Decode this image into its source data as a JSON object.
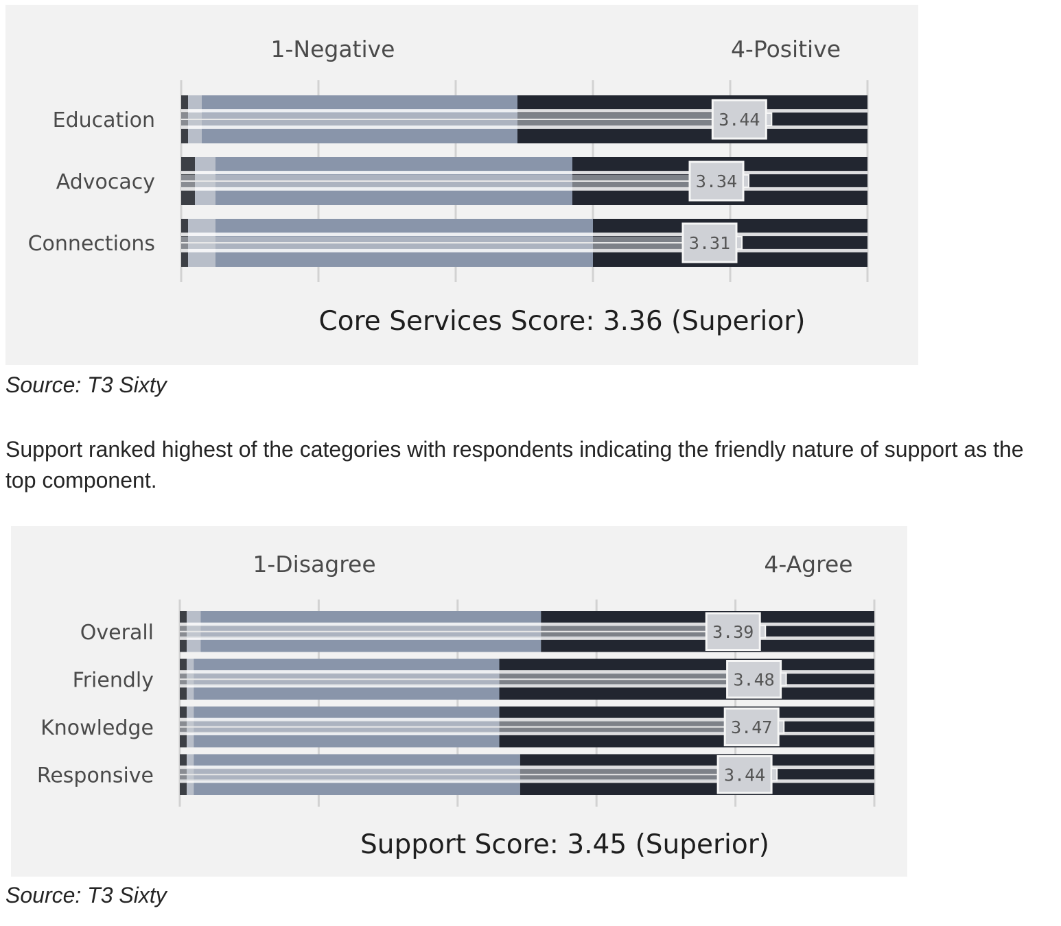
{
  "chart_data": [
    {
      "type": "bar",
      "orientation": "horizontal",
      "stacked": true,
      "scale_low_label": "1-Negative",
      "scale_high_label": "4-Positive",
      "categories": [
        "Education",
        "Advocacy",
        "Connections"
      ],
      "series": [
        {
          "name": "",
          "values": [
            1,
            2,
            1
          ]
        },
        {
          "name": "",
          "values": [
            2,
            3,
            4
          ]
        },
        {
          "name": "",
          "values": [
            46,
            52,
            55
          ]
        },
        {
          "name": "",
          "values": [
            51,
            43,
            40
          ]
        }
      ],
      "means": [
        3.44,
        3.34,
        3.31
      ],
      "mean_labels": [
        "3.44",
        "3.34",
        "3.31"
      ],
      "score_label": "Core Services Score: 3.36 (Superior)",
      "xlim": [
        0,
        100
      ],
      "grid": true,
      "colors": [
        "#3c3f45",
        "#b8bec9",
        "#8995aa",
        "#222630"
      ],
      "source": "Source: T3 Sixty"
    },
    {
      "type": "bar",
      "orientation": "horizontal",
      "stacked": true,
      "scale_low_label": "1-Disagree",
      "scale_high_label": "4-Agree",
      "categories": [
        "Overall",
        "Friendly",
        "Knowledge",
        "Responsive"
      ],
      "series": [
        {
          "name": "",
          "values": [
            1,
            1,
            1,
            1
          ]
        },
        {
          "name": "",
          "values": [
            2,
            1,
            1,
            1
          ]
        },
        {
          "name": "",
          "values": [
            49,
            44,
            44,
            47
          ]
        },
        {
          "name": "",
          "values": [
            48,
            54,
            54,
            51
          ]
        }
      ],
      "means": [
        3.39,
        3.48,
        3.47,
        3.44
      ],
      "mean_labels": [
        "3.39",
        "3.48",
        "3.47",
        "3.44"
      ],
      "score_label": "Support Score: 3.45 (Superior)",
      "xlim": [
        0,
        100
      ],
      "grid": true,
      "colors": [
        "#3c3f45",
        "#b8bec9",
        "#8995aa",
        "#222630"
      ],
      "source": "Source: T3 Sixty"
    }
  ],
  "paragraph": "Support ranked highest of the categories with respondents indicating the friendly nature of support as the top component."
}
